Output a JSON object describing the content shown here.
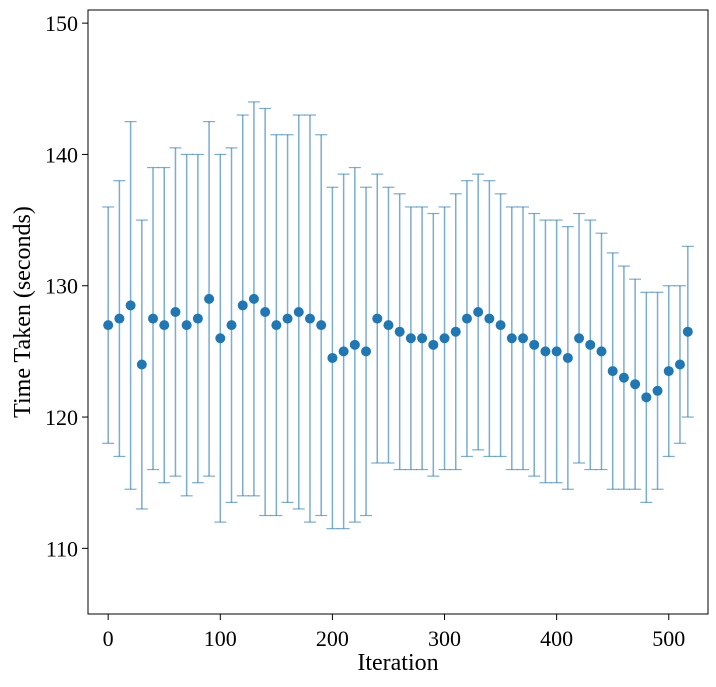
{
  "chart_data": {
    "type": "scatter",
    "title": "",
    "xlabel": "Iteration",
    "ylabel": "Time Taken (seconds)",
    "xlim": [
      -18,
      535
    ],
    "ylim": [
      105,
      151
    ],
    "xticks": [
      0,
      100,
      200,
      300,
      400,
      500
    ],
    "yticks": [
      110,
      120,
      130,
      140,
      150
    ],
    "grid": false,
    "legend": "none",
    "colors": {
      "marker": "#1f77b4",
      "errorbar": "#1f77b4"
    },
    "error_bars": true,
    "series": [
      {
        "x": [
          0,
          10,
          20,
          30,
          40,
          50,
          60,
          70,
          80,
          90,
          100,
          110,
          120,
          130,
          140,
          150,
          160,
          170,
          180,
          190,
          200,
          210,
          220,
          230,
          240,
          250,
          260,
          270,
          280,
          290,
          300,
          310,
          320,
          330,
          340,
          350,
          360,
          370,
          380,
          390,
          400,
          410,
          420,
          430,
          440,
          450,
          460,
          470,
          480,
          490,
          500,
          510,
          517
        ],
        "y": [
          127.0,
          127.5,
          128.5,
          124.0,
          127.5,
          127.0,
          128.0,
          127.0,
          127.5,
          129.0,
          126.0,
          127.0,
          128.5,
          129.0,
          128.0,
          127.0,
          127.5,
          128.0,
          127.5,
          127.0,
          124.5,
          125.0,
          125.5,
          125.0,
          127.5,
          127.0,
          126.5,
          126.0,
          126.0,
          125.5,
          126.0,
          126.5,
          127.5,
          128.0,
          127.5,
          127.0,
          126.0,
          126.0,
          125.5,
          125.0,
          125.0,
          124.5,
          126.0,
          125.5,
          125.0,
          123.5,
          123.0,
          122.5,
          121.5,
          122.0,
          123.5,
          124.0,
          126.5
        ],
        "yerr": [
          9.0,
          10.5,
          14.0,
          11.0,
          11.5,
          12.0,
          12.5,
          13.0,
          12.5,
          13.5,
          14.0,
          13.5,
          14.5,
          15.0,
          15.5,
          14.5,
          14.0,
          15.0,
          15.5,
          14.5,
          13.0,
          13.5,
          13.5,
          12.5,
          11.0,
          10.5,
          10.5,
          10.0,
          10.0,
          10.0,
          10.0,
          10.5,
          10.5,
          10.5,
          10.5,
          10.0,
          10.0,
          10.0,
          10.0,
          10.0,
          10.0,
          10.0,
          9.5,
          9.5,
          9.0,
          9.0,
          8.5,
          8.0,
          8.0,
          7.5,
          6.5,
          6.0,
          6.5
        ]
      }
    ]
  }
}
